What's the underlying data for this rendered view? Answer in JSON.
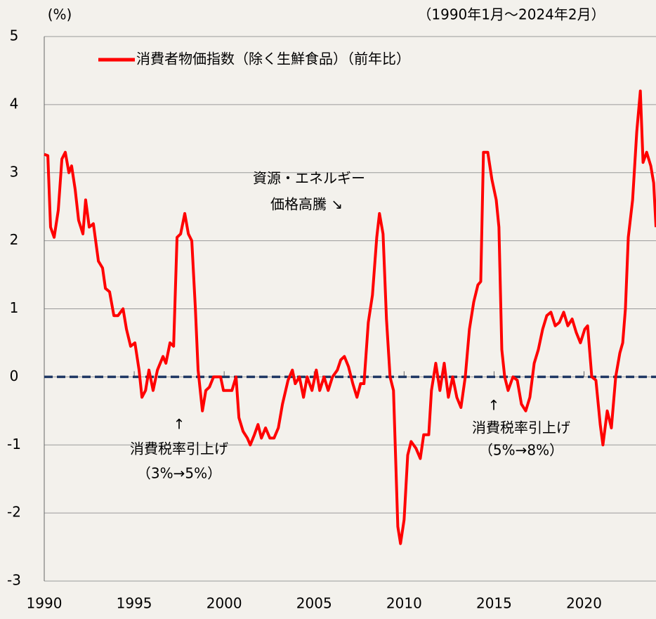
{
  "chart_data": {
    "type": "line",
    "y_unit_label": "(%)",
    "period_label": "（1990年1月～2024年2月）",
    "xlim": [
      1990,
      2024
    ],
    "ylim": [
      -3,
      5
    ],
    "xticks": [
      1990,
      1995,
      2000,
      2005,
      2010,
      2015,
      2020
    ],
    "yticks": [
      -3,
      -2,
      -1,
      0,
      1,
      2,
      3,
      4,
      5
    ],
    "grid": true,
    "legend": "top-left",
    "reference_line": {
      "value": 0,
      "color": "#1f3864",
      "style": "dashed"
    },
    "annotations": [
      "資源・エネルギー",
      "価格高騰 ↘",
      "↑",
      "消費税率引上げ",
      "（3%→5%）",
      "↑",
      "消費税率引上げ",
      "（5%→8%）"
    ],
    "x": [
      1990.0,
      1990.2,
      1990.35,
      1990.55,
      1990.78,
      1990.98,
      1991.17,
      1991.37,
      1991.52,
      1991.72,
      1991.91,
      1992.15,
      1992.3,
      1992.5,
      1992.73,
      1993.01,
      1993.24,
      1993.4,
      1993.63,
      1993.87,
      1994.1,
      1994.38,
      1994.57,
      1994.8,
      1995.04,
      1995.27,
      1995.43,
      1995.63,
      1995.82,
      1996.05,
      1996.29,
      1996.6,
      1996.76,
      1996.99,
      1997.19,
      1997.38,
      1997.58,
      1997.81,
      1998.01,
      1998.2,
      1998.4,
      1998.55,
      1998.79,
      1998.98,
      1999.18,
      1999.41,
      1999.8,
      1999.96,
      2000.43,
      2000.66,
      2000.82,
      2001.05,
      2001.29,
      2001.45,
      2001.68,
      2001.88,
      2002.07,
      2002.3,
      2002.54,
      2002.77,
      2003.01,
      2003.24,
      2003.55,
      2003.79,
      2003.95,
      2004.18,
      2004.41,
      2004.61,
      2004.88,
      2005.12,
      2005.31,
      2005.55,
      2005.78,
      2006.02,
      2006.29,
      2006.48,
      2006.68,
      2006.91,
      2007.15,
      2007.38,
      2007.58,
      2007.77,
      2008.01,
      2008.24,
      2008.48,
      2008.63,
      2008.83,
      2009.02,
      2009.22,
      2009.41,
      2009.65,
      2009.8,
      2010.0,
      2010.2,
      2010.39,
      2010.66,
      2010.9,
      2011.09,
      2011.37,
      2011.52,
      2011.76,
      2011.99,
      2012.23,
      2012.46,
      2012.7,
      2012.93,
      2013.16,
      2013.4,
      2013.63,
      2013.87,
      2014.1,
      2014.26,
      2014.41,
      2014.65,
      2014.88,
      2015.12,
      2015.27,
      2015.43,
      2015.59,
      2015.78,
      2016.05,
      2016.29,
      2016.52,
      2016.76,
      2016.99,
      2017.23,
      2017.46,
      2017.7,
      2017.93,
      2018.16,
      2018.4,
      2018.63,
      2018.87,
      2019.1,
      2019.34,
      2019.57,
      2019.8,
      2020.04,
      2020.2,
      2020.43,
      2020.66,
      2020.9,
      2021.05,
      2021.29,
      2021.52,
      2021.76,
      2021.99,
      2022.15,
      2022.3,
      2022.46,
      2022.7,
      2022.93,
      2023.13,
      2023.28,
      2023.48,
      2023.71,
      2023.87,
      2024.0
    ],
    "series": [
      {
        "name": "消費者物価指数（除く生鮮食品）（前年比）",
        "color": "#ff0000",
        "values": [
          3.27,
          3.25,
          2.2,
          2.05,
          2.45,
          3.2,
          3.3,
          3.0,
          3.1,
          2.75,
          2.3,
          2.1,
          2.6,
          2.2,
          2.25,
          1.7,
          1.6,
          1.3,
          1.25,
          0.9,
          0.9,
          1.0,
          0.7,
          0.45,
          0.5,
          0.1,
          -0.3,
          -0.2,
          0.1,
          -0.2,
          0.1,
          0.3,
          0.2,
          0.5,
          0.45,
          2.05,
          2.1,
          2.4,
          2.1,
          2.0,
          1.0,
          0.1,
          -0.5,
          -0.2,
          -0.15,
          0.0,
          0.0,
          -0.2,
          -0.2,
          0.0,
          -0.6,
          -0.8,
          -0.9,
          -1.0,
          -0.85,
          -0.7,
          -0.9,
          -0.75,
          -0.9,
          -0.9,
          -0.75,
          -0.4,
          -0.05,
          0.1,
          -0.1,
          0.0,
          -0.3,
          0.0,
          -0.2,
          0.1,
          -0.2,
          0.0,
          -0.2,
          0.0,
          0.1,
          0.25,
          0.3,
          0.15,
          -0.1,
          -0.3,
          -0.1,
          -0.1,
          0.8,
          1.2,
          2.05,
          2.4,
          2.1,
          0.85,
          0.0,
          -0.2,
          -2.2,
          -2.45,
          -2.1,
          -1.15,
          -0.95,
          -1.05,
          -1.2,
          -0.85,
          -0.85,
          -0.2,
          0.2,
          -0.2,
          0.2,
          -0.3,
          0.0,
          -0.3,
          -0.45,
          0.0,
          0.7,
          1.1,
          1.35,
          1.4,
          3.3,
          3.3,
          2.9,
          2.6,
          2.2,
          0.4,
          0.0,
          -0.2,
          0.0,
          -0.05,
          -0.4,
          -0.5,
          -0.3,
          0.2,
          0.4,
          0.7,
          0.9,
          0.95,
          0.75,
          0.8,
          0.95,
          0.75,
          0.85,
          0.65,
          0.5,
          0.7,
          0.75,
          0.0,
          -0.05,
          -0.7,
          -1.0,
          -0.5,
          -0.75,
          0.0,
          0.35,
          0.5,
          1.0,
          2.05,
          2.6,
          3.6,
          4.2,
          3.15,
          3.3,
          3.1,
          2.85,
          2.2
        ]
      }
    ]
  }
}
